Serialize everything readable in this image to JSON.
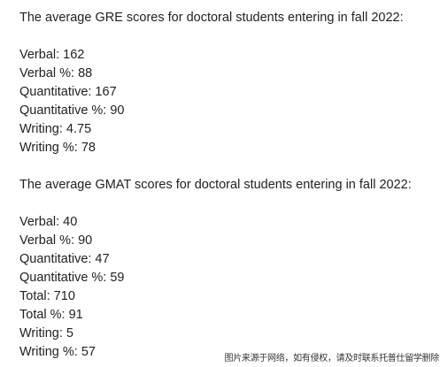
{
  "gre": {
    "intro": "The average GRE scores for doctoral students entering in fall 2022:",
    "items": [
      "Verbal: 162",
      "Verbal %: 88",
      "Quantitative: 167",
      "Quantitative %: 90",
      "Writing: 4.75",
      "Writing %: 78"
    ]
  },
  "gmat": {
    "intro": "The average GMAT scores for doctoral students entering in fall 2022:",
    "items": [
      "Verbal: 40",
      "Verbal %: 90",
      "Quantitative: 47",
      "Quantitative %: 59",
      "Total: 710",
      "Total %: 91",
      "Writing: 5",
      "Writing %: 57"
    ]
  },
  "watermark": "图片来源于网络，如有侵权，请及时联系托普仕留学删除"
}
